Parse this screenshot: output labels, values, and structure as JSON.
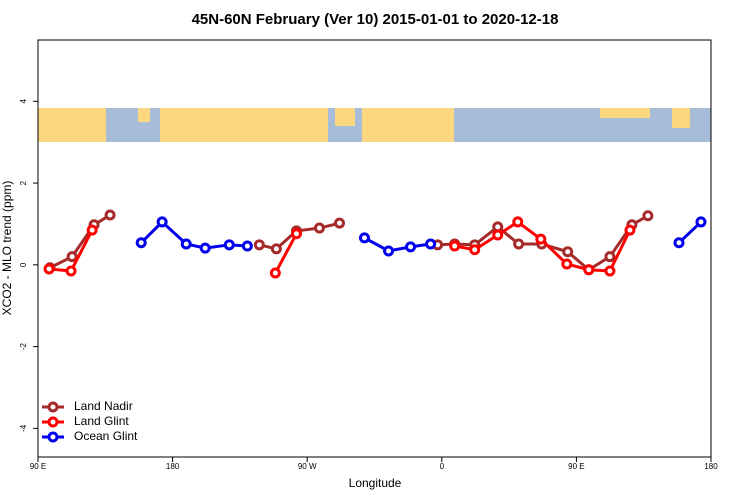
{
  "chart_data": {
    "type": "line",
    "title": "45N-60N February (Ver 10)   2015-01-01 to 2020-12-18",
    "x_label": "Longitude",
    "y_label": "XCO2 - MLO trend (ppm)",
    "xlim": [
      90,
      540
    ],
    "xticks": [
      {
        "value": 90,
        "label": "90 E"
      },
      180,
      {
        "value": 270,
        "label": "90 W"
      },
      {
        "value": 360,
        "label": "0"
      },
      {
        "value": 450,
        "label": "90 E"
      },
      {
        "value": 540,
        "label": "180"
      }
    ],
    "ylim": [
      -4.7,
      5.5
    ],
    "yticks": [
      -4,
      -2,
      0,
      2,
      4
    ],
    "legend": "bottom-left",
    "series": [
      {
        "name": "Land Nadir",
        "color": "#a52a2a",
        "x": [
          98.0,
          112.8,
          127.5,
          138.2,
          null,
          238.0,
          249.4,
          262.8,
          278.2,
          291.6,
          null,
          357.2,
          368.6,
          382.0,
          397.4,
          411.4,
          426.8,
          444.2,
          458.3,
          472.4,
          487.1,
          497.8
        ],
        "values": [
          -0.07,
          0.2,
          0.98,
          1.22,
          null,
          0.49,
          0.39,
          0.83,
          0.9,
          1.02,
          null,
          0.49,
          0.51,
          0.49,
          0.93,
          0.51,
          0.51,
          0.32,
          -0.12,
          0.2,
          0.98,
          1.2
        ]
      },
      {
        "name": "Land Glint",
        "color": "#ff0000",
        "x": [
          97.4,
          112.1,
          126.2,
          null,
          248.7,
          262.8,
          null,
          368.6,
          382.0,
          397.4,
          410.8,
          426.2,
          443.6,
          458.3,
          472.4,
          485.8
        ],
        "values": [
          -0.1,
          -0.15,
          0.85,
          null,
          -0.2,
          0.76,
          null,
          0.46,
          0.37,
          0.73,
          1.05,
          0.63,
          0.02,
          -0.12,
          -0.15,
          0.85
        ]
      },
      {
        "name": "Ocean Glint",
        "color": "#0000ee",
        "x": [
          159.0,
          173.0,
          189.1,
          201.8,
          217.9,
          230.0,
          null,
          308.3,
          324.4,
          339.1,
          352.5,
          null,
          518.6,
          533.3
        ],
        "values": [
          0.54,
          1.05,
          0.51,
          0.41,
          0.49,
          0.46,
          null,
          0.66,
          0.34,
          0.44,
          0.51,
          null,
          0.54,
          1.05
        ]
      }
    ]
  }
}
